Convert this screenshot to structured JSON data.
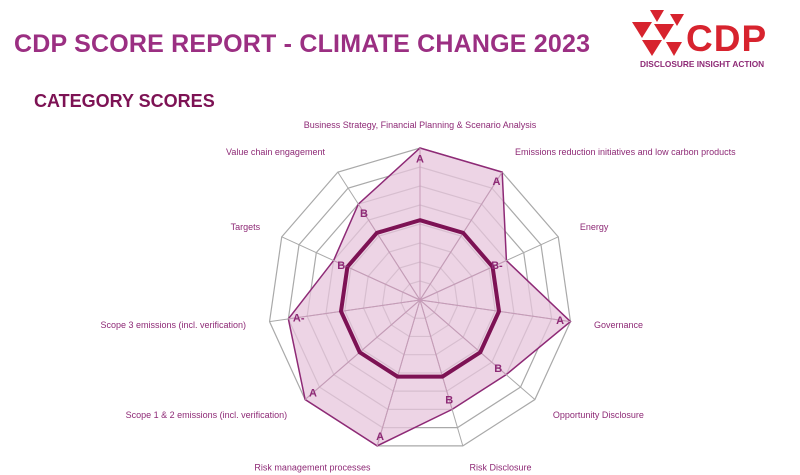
{
  "header": {
    "title": "CDP SCORE REPORT - CLIMATE CHANGE 2023",
    "section": "CATEGORY SCORES"
  },
  "logo": {
    "word": "CDP",
    "tagline": "DISCLOSURE INSIGHT ACTION",
    "color": "#d7232e"
  },
  "colors": {
    "series_stroke": "#8e2a76",
    "series_fill": "#e7c6dc",
    "benchmark": "#7d1254",
    "grid": "#a9a9a9",
    "text": "#8e2a76"
  },
  "chart_data": {
    "type": "radar",
    "title": "",
    "scale_levels": [
      "D-",
      "D",
      "C-",
      "C",
      "B-",
      "B",
      "A-",
      "A"
    ],
    "grid_rings": 8,
    "categories": [
      "Business Strategy, Financial Planning & Scenario Analysis",
      "Emissions reduction initiatives and low carbon products",
      "Energy",
      "Governance",
      "Opportunity Disclosure",
      "Risk Disclosure",
      "Risk management processes",
      "Scope 1 & 2 emissions (incl. verification)",
      "Scope 3 emissions (incl. verification)",
      "Targets",
      "Value chain engagement"
    ],
    "series": [
      {
        "scores": [
          "A",
          "A",
          "B-",
          "A",
          "B",
          "B",
          "A",
          "A",
          "A-",
          "B-",
          "B"
        ],
        "values": [
          8,
          8,
          5,
          8,
          6,
          6,
          8,
          8,
          7,
          5,
          6
        ]
      },
      {
        "values": [
          4.2,
          4.2,
          4.2,
          4.2,
          4.2,
          4.2,
          4.2,
          4.2,
          4.2,
          4.2,
          4.2
        ]
      }
    ]
  }
}
